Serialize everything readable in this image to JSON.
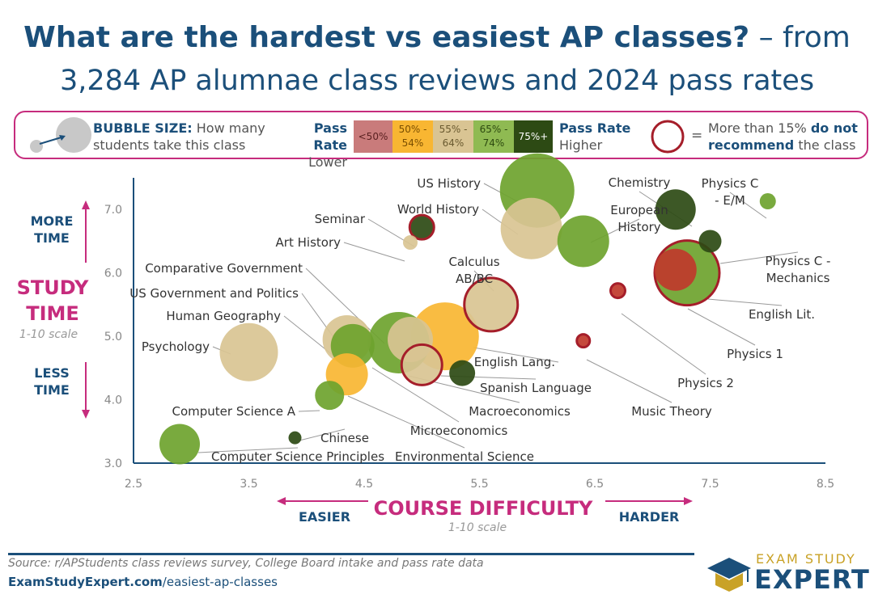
{
  "title": {
    "line1_bold": "What are the hardest vs easiest AP classes?",
    "line1_rest": " – from",
    "line2": "3,284 AP alumnae class reviews and 2024 pass rates"
  },
  "legend": {
    "bubble_size_label": "BUBBLE SIZE:",
    "bubble_size_text1": " How many",
    "bubble_size_text2": "students take this class",
    "pass_rate_left_1": "Pass Rate",
    "pass_rate_left_2": "Lower",
    "pass_rate_right_1": "Pass Rate",
    "pass_rate_right_2": "Higher",
    "bins": [
      {
        "label": "<50%",
        "color": "#c97b7b",
        "text_color": "#5a2020"
      },
      {
        "label": "50% - 54%",
        "color": "#f8b632",
        "text_color": "#7a4e00"
      },
      {
        "label": "55% - 64%",
        "color": "#d9c493",
        "text_color": "#6a5a30"
      },
      {
        "label": "65% - 74%",
        "color": "#8fba52",
        "text_color": "#2d4a10"
      },
      {
        "label": "75%+",
        "color": "#2d4a14",
        "text_color": "#ffffff"
      }
    ],
    "eq": "=",
    "recommend_1a": "More than 15% ",
    "recommend_1b": "do not",
    "recommend_2a": "recommend",
    "recommend_2b": " the class"
  },
  "chart_data": {
    "type": "scatter",
    "title": "What are the hardest vs easiest AP classes? – from 3,284 AP alumnae class reviews and 2024 pass rates",
    "xlabel": "COURSE DIFFICULTY",
    "xlabel_sub": "1-10 scale",
    "ylabel": "STUDY TIME",
    "ylabel_sub": "1-10 scale",
    "xlim": [
      2.5,
      8.5
    ],
    "ylim": [
      3.0,
      7.5
    ],
    "xticks": [
      "2.5",
      "3.5",
      "4.5",
      "5.5",
      "6.5",
      "7.5",
      "8.5"
    ],
    "yticks": [
      "3.0",
      "4.0",
      "5.0",
      "6.0",
      "7.0"
    ],
    "x_left_label": "EASIER",
    "x_right_label": "HARDER",
    "y_top_label_1": "MORE",
    "y_top_label_2": "TIME",
    "y_bottom_label_1": "LESS",
    "y_bottom_label_2": "TIME",
    "grid": false,
    "points": [
      {
        "name": "US History",
        "x": 6.0,
        "y": 7.3,
        "size": 46,
        "color": "#6ea32e",
        "not_recommend": false
      },
      {
        "name": "World History",
        "x": 5.95,
        "y": 6.7,
        "size": 38,
        "color": "#d9c493",
        "not_recommend": false
      },
      {
        "name": "European History",
        "x": 6.4,
        "y": 6.5,
        "size": 32,
        "color": "#6ea32e",
        "not_recommend": false
      },
      {
        "name": "Chemistry",
        "x": 7.2,
        "y": 7.0,
        "size": 25,
        "color": "#2d4a14",
        "not_recommend": false
      },
      {
        "name": "Physics C - E/M",
        "x": 8.0,
        "y": 7.13,
        "size": 10,
        "color": "#6ea32e",
        "not_recommend": false
      },
      {
        "name": "Physics C - Mechanics",
        "x": 7.5,
        "y": 6.5,
        "size": 14,
        "color": "#2d4a14",
        "not_recommend": false
      },
      {
        "name": "English Lit.",
        "x": 7.3,
        "y": 6.0,
        "size": 40,
        "color": "#6ea32e",
        "not_recommend": true
      },
      {
        "name": "Physics 1",
        "x": 7.2,
        "y": 6.05,
        "size": 26,
        "color": "#c0392b",
        "not_recommend": false
      },
      {
        "name": "Physics 2",
        "x": 6.7,
        "y": 5.72,
        "size": 9,
        "color": "#c0392b",
        "not_recommend": true
      },
      {
        "name": "Music Theory",
        "x": 6.4,
        "y": 4.93,
        "size": 8,
        "color": "#c0392b",
        "not_recommend": true
      },
      {
        "name": "Seminar",
        "x": 5.0,
        "y": 6.72,
        "size": 15,
        "color": "#2d4a14",
        "not_recommend": true
      },
      {
        "name": "Art History",
        "x": 4.9,
        "y": 6.48,
        "size": 9,
        "color": "#d9c493",
        "not_recommend": false
      },
      {
        "name": "Calculus AB/BC",
        "x": 5.6,
        "y": 5.5,
        "size": 33,
        "color": "#d9c493",
        "not_recommend": true
      },
      {
        "name": "Comparative Government",
        "x": 4.8,
        "y": 4.9,
        "size": 38,
        "color": "#6ea32e",
        "not_recommend": false
      },
      {
        "name": "English Lang.",
        "x": 5.2,
        "y": 5.0,
        "size": 42,
        "color": "#f8b632",
        "not_recommend": false
      },
      {
        "name": "US Government and Politics",
        "x": 4.35,
        "y": 4.95,
        "size": 30,
        "color": "#d9c493",
        "not_recommend": false
      },
      {
        "name": "Human Geography",
        "x": 4.4,
        "y": 4.85,
        "size": 27,
        "color": "#6ea32e",
        "not_recommend": false
      },
      {
        "name": "Spanish Language",
        "x": 5.35,
        "y": 4.42,
        "size": 16,
        "color": "#2d4a14",
        "not_recommend": false
      },
      {
        "name": "Macroeconomics",
        "x": 5.0,
        "y": 4.55,
        "size": 25,
        "color": "#d9c493",
        "not_recommend": true
      },
      {
        "name": "Microeconomics",
        "x": 4.9,
        "y": 4.95,
        "size": 28,
        "color": "#d9c493",
        "not_recommend": false
      },
      {
        "name": "Psychology",
        "x": 3.5,
        "y": 4.75,
        "size": 36,
        "color": "#d9c493",
        "not_recommend": false
      },
      {
        "name": "Computer Science A",
        "x": 4.2,
        "y": 4.07,
        "size": 18,
        "color": "#6ea32e",
        "not_recommend": false
      },
      {
        "name": "Environmental Science",
        "x": 4.35,
        "y": 4.4,
        "size": 26,
        "color": "#f8b632",
        "not_recommend": false
      },
      {
        "name": "Chinese",
        "x": 3.9,
        "y": 3.4,
        "size": 8,
        "color": "#2d4a14",
        "not_recommend": false
      },
      {
        "name": "Computer Science Principles",
        "x": 2.9,
        "y": 3.3,
        "size": 25,
        "color": "#6ea32e",
        "not_recommend": false
      }
    ]
  },
  "footer": {
    "source": "Source: r/APStudents class reviews survey, College Board intake and pass rate data",
    "site_bold": "ExamStudyExpert.com",
    "site_rest": "/easiest-ap-classes",
    "logo_top": "EXAM STUDY",
    "logo_main": "EXPERT"
  }
}
